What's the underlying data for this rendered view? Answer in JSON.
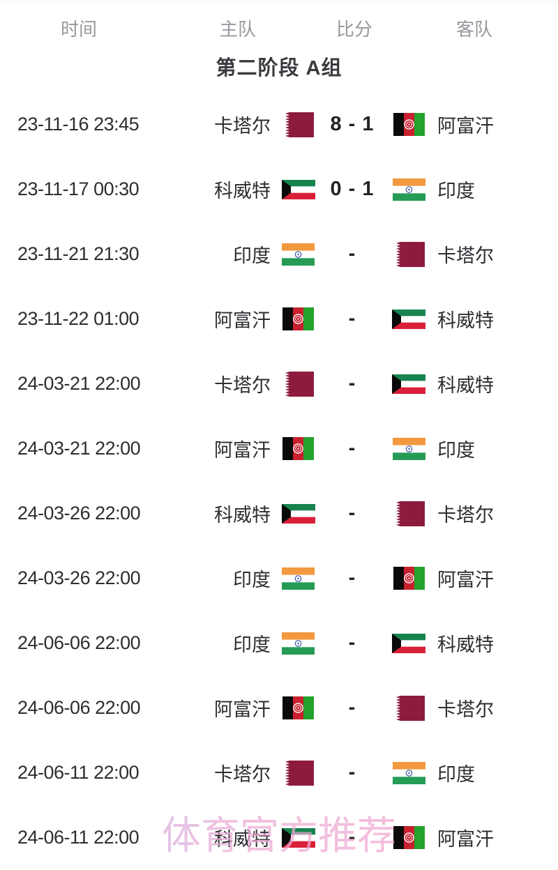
{
  "header": {
    "columns": [
      "时间",
      "主队",
      "比分",
      "客队"
    ]
  },
  "section": {
    "title": "第二阶段 A组"
  },
  "matches": [
    {
      "time": "23-11-16 23:45",
      "home": {
        "name": "卡塔尔",
        "flag": "qatar"
      },
      "score": "8 - 1",
      "away": {
        "name": "阿富汗",
        "flag": "afghanistan"
      }
    },
    {
      "time": "23-11-17 00:30",
      "home": {
        "name": "科威特",
        "flag": "kuwait"
      },
      "score": "0 - 1",
      "away": {
        "name": "印度",
        "flag": "india"
      }
    },
    {
      "time": "23-11-21 21:30",
      "home": {
        "name": "印度",
        "flag": "india"
      },
      "score": "-",
      "away": {
        "name": "卡塔尔",
        "flag": "qatar"
      }
    },
    {
      "time": "23-11-22 01:00",
      "home": {
        "name": "阿富汗",
        "flag": "afghanistan"
      },
      "score": "-",
      "away": {
        "name": "科威特",
        "flag": "kuwait"
      }
    },
    {
      "time": "24-03-21 22:00",
      "home": {
        "name": "卡塔尔",
        "flag": "qatar"
      },
      "score": "-",
      "away": {
        "name": "科威特",
        "flag": "kuwait"
      }
    },
    {
      "time": "24-03-21 22:00",
      "home": {
        "name": "阿富汗",
        "flag": "afghanistan"
      },
      "score": "-",
      "away": {
        "name": "印度",
        "flag": "india"
      }
    },
    {
      "time": "24-03-26 22:00",
      "home": {
        "name": "科威特",
        "flag": "kuwait"
      },
      "score": "-",
      "away": {
        "name": "卡塔尔",
        "flag": "qatar"
      }
    },
    {
      "time": "24-03-26 22:00",
      "home": {
        "name": "印度",
        "flag": "india"
      },
      "score": "-",
      "away": {
        "name": "阿富汗",
        "flag": "afghanistan"
      }
    },
    {
      "time": "24-06-06 22:00",
      "home": {
        "name": "印度",
        "flag": "india"
      },
      "score": "-",
      "away": {
        "name": "科威特",
        "flag": "kuwait"
      }
    },
    {
      "time": "24-06-06 22:00",
      "home": {
        "name": "阿富汗",
        "flag": "afghanistan"
      },
      "score": "-",
      "away": {
        "name": "卡塔尔",
        "flag": "qatar"
      }
    },
    {
      "time": "24-06-11 22:00",
      "home": {
        "name": "卡塔尔",
        "flag": "qatar"
      },
      "score": "-",
      "away": {
        "name": "印度",
        "flag": "india"
      }
    },
    {
      "time": "24-06-11 22:00",
      "home": {
        "name": "科威特",
        "flag": "kuwait"
      },
      "score": "-",
      "away": {
        "name": "阿富汗",
        "flag": "afghanistan"
      }
    }
  ],
  "watermark": {
    "text": "体育官方推荐"
  },
  "colors": {
    "header_text": "#98989e",
    "body_text": "#2d2d32",
    "title_text": "#3a3a3f",
    "watermark_pink": "#eda9d4",
    "qatar_maroon": "#8d1b3d",
    "kuwait_green": "#17834f",
    "kuwait_red": "#d92038",
    "india_saffron": "#f2993f",
    "india_green": "#259b56",
    "afghanistan_red": "#c8202f",
    "afghanistan_green": "#23a22d"
  }
}
